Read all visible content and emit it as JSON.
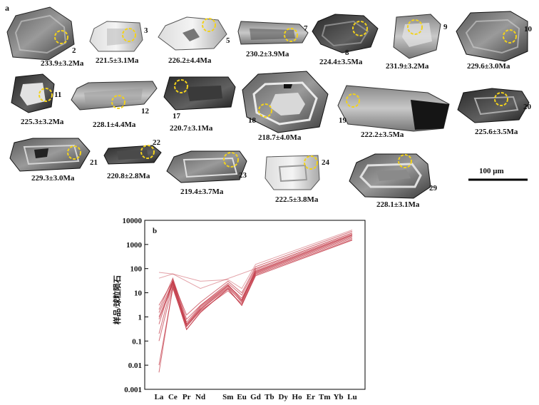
{
  "panel_a": {
    "label": "a",
    "scale_bar_text": "100 μm",
    "grains": [
      {
        "num": "2",
        "age": "233.9±3.2Ma"
      },
      {
        "num": "3",
        "age": "221.5±3.1Ma"
      },
      {
        "num": "5",
        "age": "226.2±4.4Ma"
      },
      {
        "num": "7",
        "age": "230.2±3.9Ma"
      },
      {
        "num": "8",
        "age": "224.4±3.5Ma"
      },
      {
        "num": "9",
        "age": "231.9±3.2Ma"
      },
      {
        "num": "10",
        "age": "229.6±3.0Ma"
      },
      {
        "num": "11",
        "age": "225.3±3.2Ma"
      },
      {
        "num": "12",
        "age": "228.1±4.4Ma"
      },
      {
        "num": "17",
        "age": "220.7±3.1Ma"
      },
      {
        "num": "18",
        "age": "218.7±4.0Ma"
      },
      {
        "num": "19",
        "age": "222.2±3.5Ma"
      },
      {
        "num": "20",
        "age": "225.6±3.5Ma"
      },
      {
        "num": "21",
        "age": "229.3±3.0Ma"
      },
      {
        "num": "22",
        "age": "220.8±2.8Ma"
      },
      {
        "num": "23",
        "age": "219.4±3.7Ma"
      },
      {
        "num": "24",
        "age": "222.5±3.8Ma"
      },
      {
        "num": "29",
        "age": "228.1±3.1Ma"
      }
    ]
  },
  "panel_b": {
    "label": "b",
    "ylabel": "样品/球粒陨石",
    "chart_data": {
      "type": "line",
      "scale": "log",
      "x": [
        "La",
        "Ce",
        "Pr",
        "Nd",
        "Sm",
        "Eu",
        "Gd",
        "Tb",
        "Dy",
        "Ho",
        "Er",
        "Tm",
        "Yb",
        "Lu"
      ],
      "x_ticks_shown": [
        "La",
        "Ce",
        "Pr",
        "Nd",
        "",
        "Sm",
        "Eu",
        "Gd",
        "Tb",
        "Dy",
        "Ho",
        "Er",
        "Tm",
        "Yb",
        "Lu"
      ],
      "ytick_labels": [
        "10000",
        "1000",
        "100",
        "10",
        "1",
        "0.1",
        "0.01",
        "0.001"
      ],
      "ylim": [
        0.001,
        10000
      ],
      "line_color": "#c0303f",
      "series": [
        {
          "values": [
            0.2,
            30,
            0.5,
            2.5,
            20,
            6,
            80,
            null,
            null,
            null,
            null,
            null,
            null,
            2500
          ]
        },
        {
          "values": [
            1.0,
            25,
            0.4,
            2,
            18,
            4,
            70,
            null,
            null,
            null,
            null,
            null,
            null,
            2200
          ]
        },
        {
          "values": [
            0.1,
            20,
            0.3,
            1.5,
            15,
            3,
            60,
            null,
            null,
            null,
            null,
            null,
            null,
            1800
          ]
        },
        {
          "values": [
            2.0,
            40,
            0.8,
            3,
            25,
            8,
            100,
            null,
            null,
            null,
            null,
            null,
            null,
            3000
          ]
        },
        {
          "values": [
            0.5,
            35,
            0.6,
            2.8,
            22,
            5,
            90,
            null,
            null,
            null,
            null,
            null,
            null,
            2700
          ]
        },
        {
          "values": [
            3.0,
            30,
            1.2,
            4,
            30,
            10,
            120,
            null,
            null,
            null,
            null,
            null,
            null,
            3500
          ]
        },
        {
          "values": [
            0.01,
            15,
            0.4,
            1.8,
            12,
            3.5,
            55,
            null,
            null,
            null,
            null,
            null,
            null,
            1600
          ]
        },
        {
          "values": [
            1.5,
            28,
            0.5,
            2.2,
            20,
            5,
            75,
            null,
            null,
            null,
            null,
            null,
            null,
            2400
          ]
        },
        {
          "values": [
            40,
            60,
            null,
            30,
            35,
            15,
            150,
            null,
            null,
            null,
            null,
            null,
            null,
            4000
          ]
        },
        {
          "values": [
            70,
            60,
            null,
            15,
            null,
            null,
            100,
            null,
            null,
            null,
            null,
            null,
            null,
            3000
          ]
        },
        {
          "values": [
            0.005,
            18,
            0.3,
            1.6,
            14,
            3,
            50,
            null,
            null,
            null,
            null,
            null,
            null,
            1500
          ]
        },
        {
          "values": [
            0.8,
            22,
            0.45,
            2,
            16,
            4.5,
            65,
            null,
            null,
            null,
            null,
            null,
            null,
            2000
          ]
        }
      ]
    }
  }
}
